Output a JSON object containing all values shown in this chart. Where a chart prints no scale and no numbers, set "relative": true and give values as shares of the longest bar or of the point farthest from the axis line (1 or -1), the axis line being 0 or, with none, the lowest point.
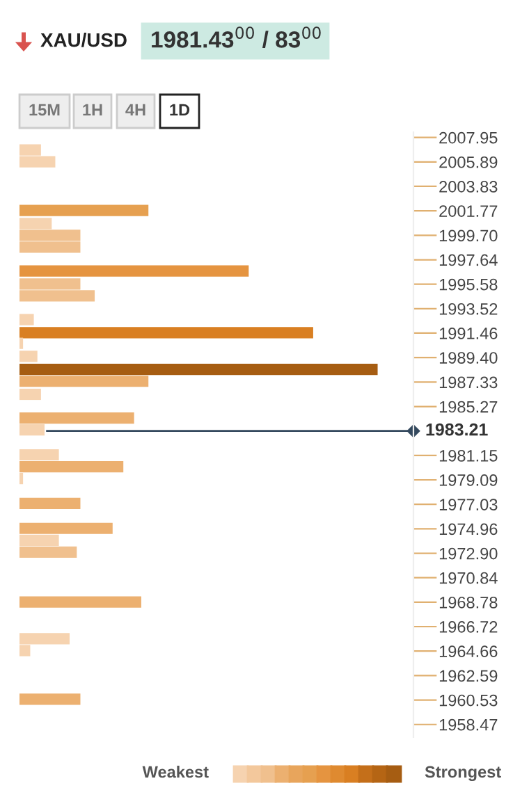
{
  "chart_data": {
    "type": "bar",
    "orientation": "horizontal",
    "relative": true,
    "title": "XAU/USD",
    "subtitle": "1981.43$^{00}$ / 83$^{00}$",
    "annotations": [
      "15M",
      "1H",
      "4H",
      "1D",
      "Weakest",
      "Strongest"
    ],
    "x": [
      2006.9,
      2005.9,
      2001.8,
      2000.7,
      1999.7,
      1998.7,
      1996.7,
      1995.6,
      1994.6,
      1992.6,
      1991.5,
      1990.6,
      1989.5,
      1988.4,
      1987.4,
      1986.3,
      1984.3,
      1983.3,
      1981.2,
      1980.2,
      1979.2,
      1977.1,
      1975.0,
      1974.0,
      1973.0,
      1968.8,
      1965.7,
      1964.7,
      1960.6
    ],
    "values": [
      0.06,
      0.1,
      0.36,
      0.09,
      0.17,
      0.17,
      0.64,
      0.17,
      0.21,
      0.04,
      0.82,
      0.01,
      0.05,
      1.0,
      0.36,
      0.06,
      0.32,
      0.07,
      0.11,
      0.29,
      0.01,
      0.17,
      0.26,
      0.11,
      0.16,
      0.34,
      0.14,
      0.03,
      0.17
    ],
    "colors": [
      "#f6d3b0",
      "#f6d3b0",
      "#e6a050",
      "#f6d3b0",
      "#f0c08e",
      "#f0c08e",
      "#e59440",
      "#f0c08e",
      "#f0c08e",
      "#f6d3b0",
      "#d97f22",
      "#f6d3b0",
      "#f6d3b0",
      "#a65d12",
      "#ecb070",
      "#f6d3b0",
      "#ecb070",
      "#f6d3b0",
      "#f6d3b0",
      "#ecb070",
      "#f6d3b0",
      "#ecb070",
      "#ecb070",
      "#f6d3b0",
      "#f0c08e",
      "#ecb070",
      "#f6d3b0",
      "#f6d3b0",
      "#ecb070"
    ],
    "ylim": [
      1957.4,
      2008.4
    ],
    "yticks": [
      2007.95,
      2005.89,
      2003.83,
      2001.77,
      {
        "value": 1999.7,
        "label": "1999.70"
      },
      1997.64,
      1995.58,
      1993.52,
      1991.46,
      {
        "value": 1989.4,
        "label": "1989.40"
      },
      1987.33,
      1985.27,
      1981.15,
      1979.09,
      1977.03,
      1974.96,
      {
        "value": 1972.9,
        "label": "1972.90"
      },
      1970.84,
      1968.78,
      1966.72,
      1964.66,
      1962.59,
      1960.53,
      1958.47
    ],
    "ref_lines": [
      {
        "axis": "y",
        "value": 1983.21,
        "label": "1983.21",
        "color": "#34495e"
      }
    ]
  }
}
